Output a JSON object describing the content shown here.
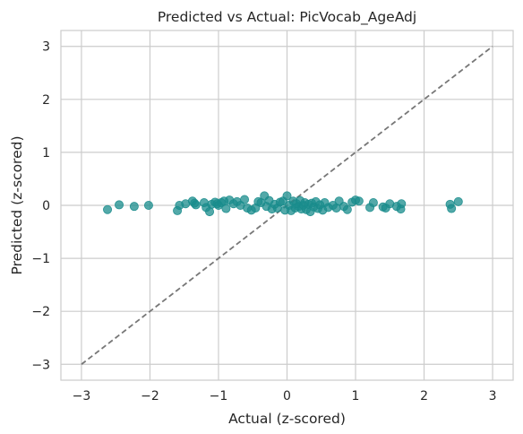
{
  "chart_data": {
    "type": "scatter",
    "title": "Predicted vs Actual: PicVocab_AgeAdj",
    "xlabel": "Actual (z-scored)",
    "ylabel": "Predicted (z-scored)",
    "xlim": [
      -3.3,
      3.3
    ],
    "ylim": [
      -3.3,
      3.3
    ],
    "xticks": [
      -3,
      -2,
      -1,
      0,
      1,
      2,
      3
    ],
    "yticks": [
      -3,
      -2,
      -1,
      0,
      1,
      2,
      3
    ],
    "xtick_labels": [
      "−3",
      "−2",
      "−1",
      "0",
      "1",
      "2",
      "3"
    ],
    "ytick_labels": [
      "−3",
      "−2",
      "−1",
      "0",
      "1",
      "2",
      "3"
    ],
    "grid": true,
    "point_color": "#198c8c",
    "reference_line": {
      "x": [
        -3,
        3
      ],
      "y": [
        -3,
        3
      ],
      "color": "#777777",
      "style": "dashed"
    },
    "points": [
      {
        "x": -2.62,
        "y": -0.08
      },
      {
        "x": -2.45,
        "y": 0.01
      },
      {
        "x": -2.23,
        "y": -0.02
      },
      {
        "x": -2.02,
        "y": 0.0
      },
      {
        "x": -1.6,
        "y": -0.1
      },
      {
        "x": -1.57,
        "y": 0.0
      },
      {
        "x": -1.48,
        "y": 0.03
      },
      {
        "x": -1.38,
        "y": 0.08
      },
      {
        "x": -1.35,
        "y": 0.04
      },
      {
        "x": -1.33,
        "y": 0.01
      },
      {
        "x": -1.21,
        "y": 0.05
      },
      {
        "x": -1.18,
        "y": -0.04
      },
      {
        "x": -1.13,
        "y": -0.12
      },
      {
        "x": -1.1,
        "y": 0.02
      },
      {
        "x": -1.05,
        "y": 0.06
      },
      {
        "x": -1.02,
        "y": 0.03
      },
      {
        "x": -1.0,
        "y": 0.0
      },
      {
        "x": -0.96,
        "y": 0.05
      },
      {
        "x": -0.92,
        "y": 0.08
      },
      {
        "x": -0.89,
        "y": -0.06
      },
      {
        "x": -0.84,
        "y": 0.1
      },
      {
        "x": -0.78,
        "y": 0.03
      },
      {
        "x": -0.73,
        "y": 0.07
      },
      {
        "x": -0.68,
        "y": 0.0
      },
      {
        "x": -0.62,
        "y": 0.11
      },
      {
        "x": -0.58,
        "y": -0.05
      },
      {
        "x": -0.52,
        "y": -0.09
      },
      {
        "x": -0.46,
        "y": -0.05
      },
      {
        "x": -0.42,
        "y": 0.07
      },
      {
        "x": -0.38,
        "y": 0.05
      },
      {
        "x": -0.33,
        "y": 0.18
      },
      {
        "x": -0.3,
        "y": -0.02
      },
      {
        "x": -0.26,
        "y": 0.09
      },
      {
        "x": -0.22,
        "y": -0.07
      },
      {
        "x": -0.18,
        "y": 0.02
      },
      {
        "x": -0.14,
        "y": -0.05
      },
      {
        "x": -0.1,
        "y": 0.06
      },
      {
        "x": -0.06,
        "y": 0.08
      },
      {
        "x": -0.03,
        "y": -0.09
      },
      {
        "x": 0.0,
        "y": 0.18
      },
      {
        "x": 0.03,
        "y": 0.0
      },
      {
        "x": 0.06,
        "y": -0.1
      },
      {
        "x": 0.09,
        "y": 0.08
      },
      {
        "x": 0.12,
        "y": -0.05
      },
      {
        "x": 0.14,
        "y": 0.03
      },
      {
        "x": 0.17,
        "y": -0.02
      },
      {
        "x": 0.19,
        "y": 0.09
      },
      {
        "x": 0.21,
        "y": -0.07
      },
      {
        "x": 0.24,
        "y": 0.0
      },
      {
        "x": 0.26,
        "y": 0.05
      },
      {
        "x": 0.28,
        "y": -0.08
      },
      {
        "x": 0.31,
        "y": 0.02
      },
      {
        "x": 0.34,
        "y": -0.12
      },
      {
        "x": 0.36,
        "y": 0.04
      },
      {
        "x": 0.39,
        "y": -0.03
      },
      {
        "x": 0.42,
        "y": 0.07
      },
      {
        "x": 0.45,
        "y": -0.06
      },
      {
        "x": 0.48,
        "y": 0.01
      },
      {
        "x": 0.52,
        "y": -0.09
      },
      {
        "x": 0.55,
        "y": 0.05
      },
      {
        "x": 0.6,
        "y": -0.04
      },
      {
        "x": 0.67,
        "y": 0.0
      },
      {
        "x": 0.72,
        "y": -0.05
      },
      {
        "x": 0.76,
        "y": 0.08
      },
      {
        "x": 0.83,
        "y": -0.02
      },
      {
        "x": 0.88,
        "y": -0.08
      },
      {
        "x": 0.95,
        "y": 0.06
      },
      {
        "x": 1.0,
        "y": 0.1
      },
      {
        "x": 1.05,
        "y": 0.08
      },
      {
        "x": 1.21,
        "y": -0.04
      },
      {
        "x": 1.26,
        "y": 0.05
      },
      {
        "x": 1.4,
        "y": -0.03
      },
      {
        "x": 1.44,
        "y": -0.05
      },
      {
        "x": 1.5,
        "y": 0.03
      },
      {
        "x": 1.6,
        "y": -0.02
      },
      {
        "x": 1.66,
        "y": -0.07
      },
      {
        "x": 1.67,
        "y": 0.03
      },
      {
        "x": 2.38,
        "y": 0.02
      },
      {
        "x": 2.4,
        "y": -0.06
      },
      {
        "x": 2.5,
        "y": 0.07
      }
    ]
  }
}
